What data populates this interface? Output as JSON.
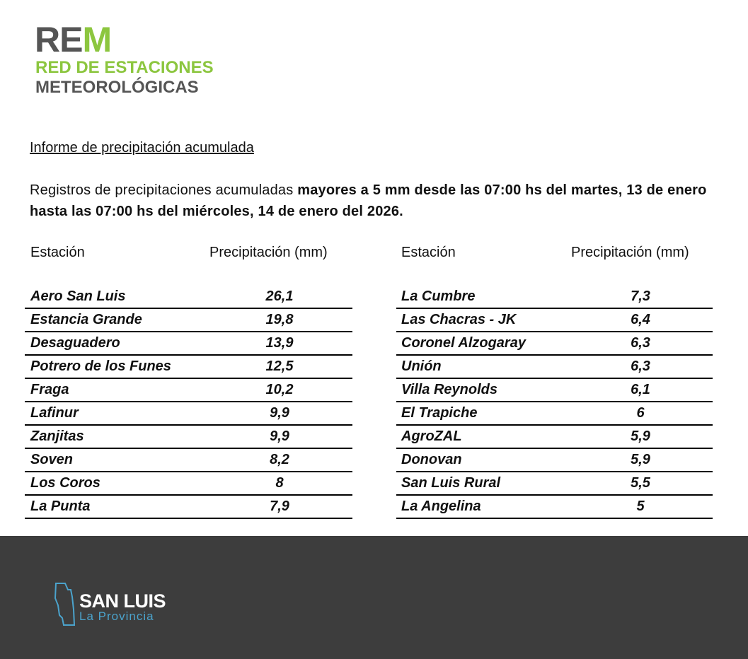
{
  "logo": {
    "mark_gray": "RE",
    "mark_green": "M",
    "line1": "RED DE ESTACIONES",
    "line2": "METEOROLÓGICAS"
  },
  "report": {
    "title": "Informe de precipitación acumulada",
    "intro": "Registros de precipitaciones acumuladas",
    "intro_bold": "mayores a 5 mm desde las 07:00 hs del martes, 13 de enero hasta las 07:00 hs del miércoles, 14 de enero del 2026."
  },
  "tables": [
    {
      "header": [
        "Estación",
        "Precipitación (mm)"
      ],
      "rows": [
        [
          "Aero San Luis",
          "26,1"
        ],
        [
          "Estancia Grande",
          "19,8"
        ],
        [
          "Desaguadero",
          "13,9"
        ],
        [
          "Potrero de los Funes",
          "12,5"
        ],
        [
          "Fraga",
          "10,2"
        ],
        [
          "Lafinur",
          "9,9"
        ],
        [
          "Zanjitas",
          "9,9"
        ],
        [
          "Soven",
          "8,2"
        ],
        [
          "Los Coros",
          "8"
        ],
        [
          "La Punta",
          "7,9"
        ]
      ]
    },
    {
      "header": [
        "Estación",
        "Precipitación (mm)"
      ],
      "rows": [
        [
          "La Cumbre",
          "7,3"
        ],
        [
          "Las Chacras - JK",
          "6,4"
        ],
        [
          "Coronel Alzogaray",
          "6,3"
        ],
        [
          "Unión",
          "6,3"
        ],
        [
          "Villa Reynolds",
          "6,1"
        ],
        [
          "El Trapiche",
          "6"
        ],
        [
          "AgroZAL",
          "5,9"
        ],
        [
          "Donovan",
          "5,9"
        ],
        [
          "San Luis Rural",
          "5,5"
        ],
        [
          "La Angelina",
          "5"
        ]
      ]
    }
  ],
  "footer": {
    "name": "SAN LUIS",
    "subtitle": "La Provincia"
  }
}
